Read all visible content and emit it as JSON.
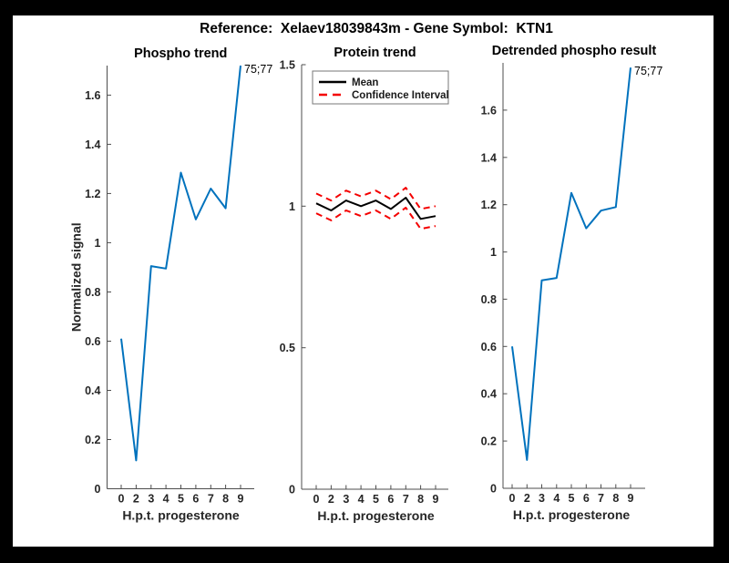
{
  "figure": {
    "title": "Reference:  Xelaev18039843m - Gene Symbol:  KTN1"
  },
  "style": {
    "page_bg": "#FFFFFF",
    "border_bg": "#000000",
    "axis_color": "#4D4D4D",
    "tick_text_color": "#262626",
    "title_text_color": "#000000"
  },
  "chart_data": [
    {
      "type": "line",
      "title": "Phospho trend",
      "xlabel": "H.p.t. progesterone",
      "ylabel": "Normalized signal",
      "categories": [
        "0",
        "2",
        "3",
        "4",
        "5",
        "6",
        "7",
        "8",
        "9"
      ],
      "ylim": [
        0,
        1.72
      ],
      "yticks": [
        0,
        0.2,
        0.4,
        0.6,
        0.8,
        1,
        1.2,
        1.4,
        1.6
      ],
      "grid": false,
      "legend_position": "none",
      "series": [
        {
          "name": "Phospho signal",
          "color": "#0072BD",
          "dash": "",
          "width": 2,
          "values": [
            0.61,
            0.115,
            0.905,
            0.895,
            1.285,
            1.095,
            1.22,
            1.14,
            1.72
          ]
        }
      ],
      "annotation": {
        "text": "75;77",
        "at_index": 8
      }
    },
    {
      "type": "line",
      "title": "Protein trend",
      "xlabel": "H.p.t. progesterone",
      "ylabel": "",
      "categories": [
        "0",
        "2",
        "3",
        "4",
        "5",
        "6",
        "7",
        "8",
        "9"
      ],
      "ylim": [
        0,
        1.5
      ],
      "yticks": [
        0,
        0.5,
        1,
        1.5
      ],
      "grid": false,
      "legend_position": "top-left-inside",
      "series": [
        {
          "name": "Confidence Interval upper",
          "color": "#F40000",
          "dash": "7,5",
          "width": 2,
          "values": [
            1.045,
            1.02,
            1.055,
            1.035,
            1.055,
            1.025,
            1.065,
            0.99,
            1.0
          ]
        },
        {
          "name": "Confidence Interval lower",
          "color": "#F40000",
          "dash": "7,5",
          "width": 2,
          "values": [
            0.975,
            0.95,
            0.985,
            0.965,
            0.985,
            0.955,
            0.995,
            0.92,
            0.93
          ]
        },
        {
          "name": "Mean",
          "color": "#000000",
          "dash": "",
          "width": 2,
          "values": [
            1.01,
            0.985,
            1.02,
            1.0,
            1.02,
            0.99,
            1.03,
            0.955,
            0.965
          ]
        }
      ],
      "legend": {
        "entries": [
          {
            "label": "Mean",
            "color": "#000000",
            "dash": ""
          },
          {
            "label": "Confidence Interval",
            "color": "#F40000",
            "dash": "9,6"
          }
        ]
      }
    },
    {
      "type": "line",
      "title": "Detrended phospho result",
      "xlabel": "H.p.t. progesterone",
      "ylabel": "",
      "categories": [
        "0",
        "2",
        "3",
        "4",
        "5",
        "6",
        "7",
        "8",
        "9"
      ],
      "ylim": [
        0,
        1.8
      ],
      "yticks": [
        0,
        0.2,
        0.4,
        0.6,
        0.8,
        1,
        1.2,
        1.4,
        1.6
      ],
      "grid": false,
      "legend_position": "none",
      "series": [
        {
          "name": "Detrended phospho signal",
          "color": "#0072BD",
          "dash": "",
          "width": 2,
          "values": [
            0.6,
            0.12,
            0.88,
            0.89,
            1.25,
            1.1,
            1.175,
            1.19,
            1.78
          ]
        }
      ],
      "annotation": {
        "text": "75;77",
        "at_index": 8
      }
    }
  ]
}
